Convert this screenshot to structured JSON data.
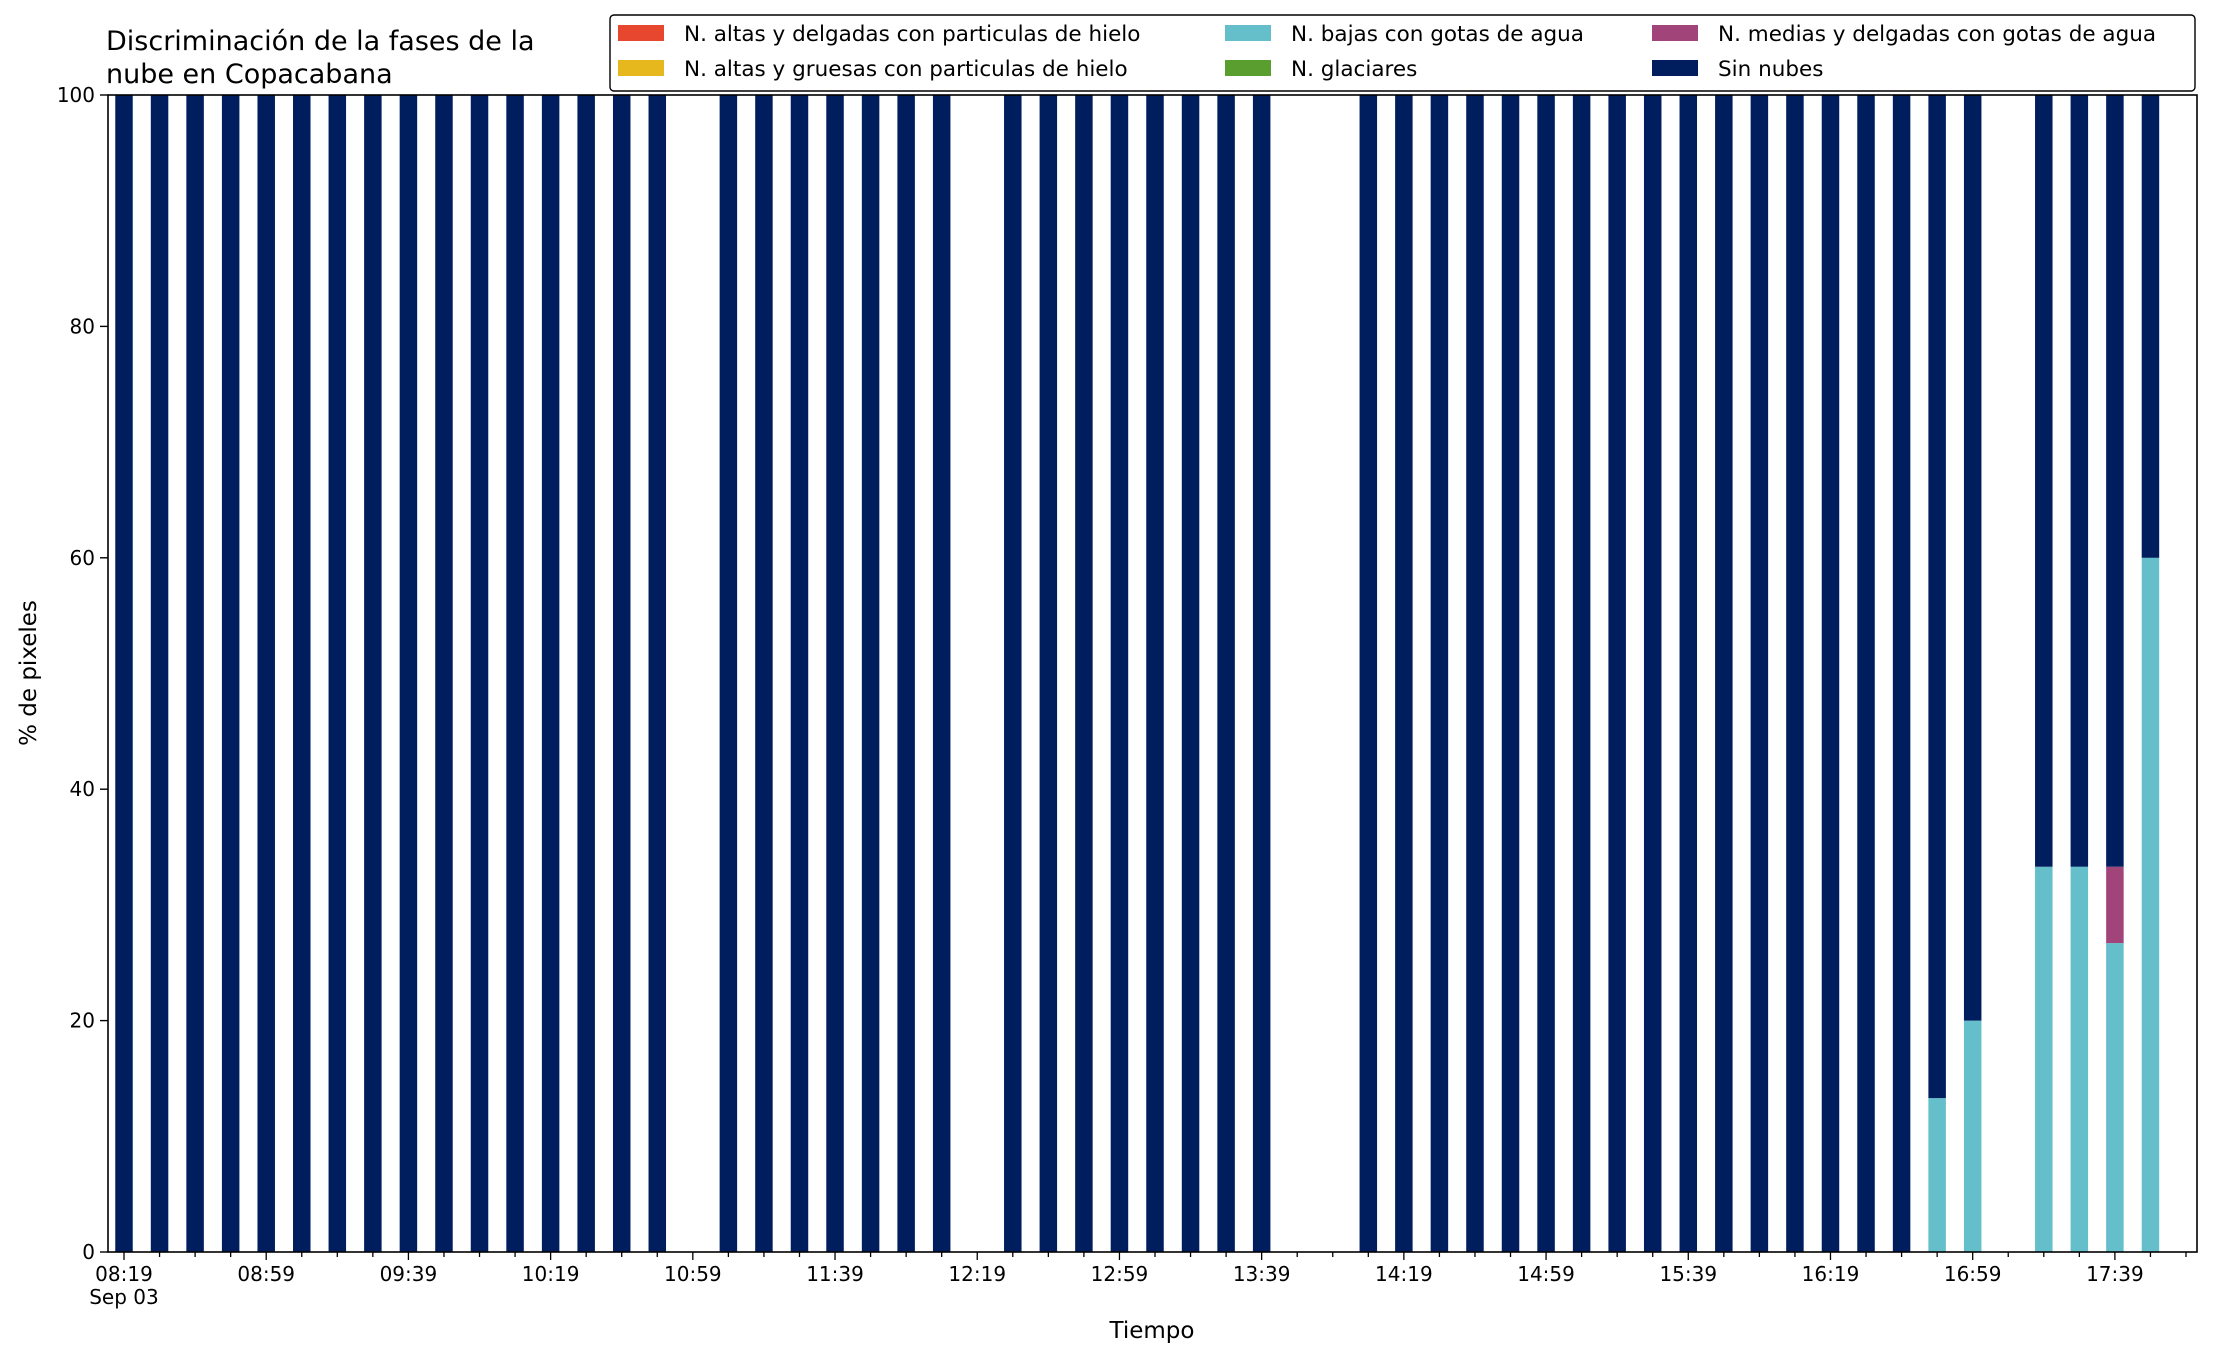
{
  "chart_data": {
    "type": "bar",
    "stacked": true,
    "title_lines": [
      "Discriminación de la fases de la",
      "nube en Copacabana"
    ],
    "xlabel": "Tiempo",
    "ylabel": "% de pixeles",
    "ylim": [
      0,
      100
    ],
    "yticks": [
      0,
      20,
      40,
      60,
      80,
      100
    ],
    "x_start": "08:19",
    "x_end": "17:59",
    "x_step_minutes": 10,
    "x_tick_labels": [
      "08:19",
      "08:59",
      "09:39",
      "10:19",
      "10:59",
      "11:39",
      "12:19",
      "12:59",
      "13:39",
      "14:19",
      "14:59",
      "15:39",
      "16:19",
      "16:59",
      "17:39"
    ],
    "x_date_label": "Sep 03",
    "legend_position": "top-right",
    "grid": false,
    "series": [
      {
        "name": "N. altas y delgadas con particulas de hielo",
        "color": "#e8472f"
      },
      {
        "name": "N. altas y gruesas con particulas de hielo",
        "color": "#e6b81e"
      },
      {
        "name": "N. bajas con gotas de agua",
        "color": "#64bfca"
      },
      {
        "name": "N. glaciares",
        "color": "#5a9e2f"
      },
      {
        "name": "N. medias y delgadas con gotas de agua",
        "color": "#a0447a"
      },
      {
        "name": "Sin nubes",
        "color": "#001e5e"
      }
    ],
    "bars": [
      {
        "time": "08:19",
        "values": [
          0,
          0,
          0,
          0,
          0,
          100
        ]
      },
      {
        "time": "08:29",
        "values": [
          0,
          0,
          0,
          0,
          0,
          100
        ]
      },
      {
        "time": "08:39",
        "values": [
          0,
          0,
          0,
          0,
          0,
          100
        ]
      },
      {
        "time": "08:49",
        "values": [
          0,
          0,
          0,
          0,
          0,
          100
        ]
      },
      {
        "time": "08:59",
        "values": [
          0,
          0,
          0,
          0,
          0,
          100
        ]
      },
      {
        "time": "09:09",
        "values": [
          0,
          0,
          0,
          0,
          0,
          100
        ]
      },
      {
        "time": "09:19",
        "values": [
          0,
          0,
          0,
          0,
          0,
          100
        ]
      },
      {
        "time": "09:29",
        "values": [
          0,
          0,
          0,
          0,
          0,
          100
        ]
      },
      {
        "time": "09:39",
        "values": [
          0,
          0,
          0,
          0,
          0,
          100
        ]
      },
      {
        "time": "09:49",
        "values": [
          0,
          0,
          0,
          0,
          0,
          100
        ]
      },
      {
        "time": "09:59",
        "values": [
          0,
          0,
          0,
          0,
          0,
          100
        ]
      },
      {
        "time": "10:09",
        "values": [
          0,
          0,
          0,
          0,
          0,
          100
        ]
      },
      {
        "time": "10:19",
        "values": [
          0,
          0,
          0,
          0,
          0,
          100
        ]
      },
      {
        "time": "10:29",
        "values": [
          0,
          0,
          0,
          0,
          0,
          100
        ]
      },
      {
        "time": "10:39",
        "values": [
          0,
          0,
          0,
          0,
          0,
          100
        ]
      },
      {
        "time": "10:49",
        "values": [
          0,
          0,
          0,
          0,
          0,
          100
        ]
      },
      {
        "time": "11:09",
        "values": [
          0,
          0,
          0,
          0,
          0,
          100
        ]
      },
      {
        "time": "11:19",
        "values": [
          0,
          0,
          0,
          0,
          0,
          100
        ]
      },
      {
        "time": "11:29",
        "values": [
          0,
          0,
          0,
          0,
          0,
          100
        ]
      },
      {
        "time": "11:39",
        "values": [
          0,
          0,
          0,
          0,
          0,
          100
        ]
      },
      {
        "time": "11:49",
        "values": [
          0,
          0,
          0,
          0,
          0,
          100
        ]
      },
      {
        "time": "11:59",
        "values": [
          0,
          0,
          0,
          0,
          0,
          100
        ]
      },
      {
        "time": "12:09",
        "values": [
          0,
          0,
          0,
          0,
          0,
          100
        ]
      },
      {
        "time": "12:29",
        "values": [
          0,
          0,
          0,
          0,
          0,
          100
        ]
      },
      {
        "time": "12:39",
        "values": [
          0,
          0,
          0,
          0,
          0,
          100
        ]
      },
      {
        "time": "12:49",
        "values": [
          0,
          0,
          0,
          0,
          0,
          100
        ]
      },
      {
        "time": "12:59",
        "values": [
          0,
          0,
          0,
          0,
          0,
          100
        ]
      },
      {
        "time": "13:09",
        "values": [
          0,
          0,
          0,
          0,
          0,
          100
        ]
      },
      {
        "time": "13:19",
        "values": [
          0,
          0,
          0,
          0,
          0,
          100
        ]
      },
      {
        "time": "13:29",
        "values": [
          0,
          0,
          0,
          0,
          0,
          100
        ]
      },
      {
        "time": "13:39",
        "values": [
          0,
          0,
          0,
          0,
          0,
          100
        ]
      },
      {
        "time": "14:09",
        "values": [
          0,
          0,
          0,
          0,
          0,
          100
        ]
      },
      {
        "time": "14:19",
        "values": [
          0,
          0,
          0,
          0,
          0,
          100
        ]
      },
      {
        "time": "14:29",
        "values": [
          0,
          0,
          0,
          0,
          0,
          100
        ]
      },
      {
        "time": "14:39",
        "values": [
          0,
          0,
          0,
          0,
          0,
          100
        ]
      },
      {
        "time": "14:49",
        "values": [
          0,
          0,
          0,
          0,
          0,
          100
        ]
      },
      {
        "time": "14:59",
        "values": [
          0,
          0,
          0,
          0,
          0,
          100
        ]
      },
      {
        "time": "15:09",
        "values": [
          0,
          0,
          0,
          0,
          0,
          100
        ]
      },
      {
        "time": "15:19",
        "values": [
          0,
          0,
          0,
          0,
          0,
          100
        ]
      },
      {
        "time": "15:29",
        "values": [
          0,
          0,
          0,
          0,
          0,
          100
        ]
      },
      {
        "time": "15:39",
        "values": [
          0,
          0,
          0,
          0,
          0,
          100
        ]
      },
      {
        "time": "15:49",
        "values": [
          0,
          0,
          0,
          0,
          0,
          100
        ]
      },
      {
        "time": "15:59",
        "values": [
          0,
          0,
          0,
          0,
          0,
          100
        ]
      },
      {
        "time": "16:09",
        "values": [
          0,
          0,
          0,
          0,
          0,
          100
        ]
      },
      {
        "time": "16:19",
        "values": [
          0,
          0,
          0,
          0,
          0,
          100
        ]
      },
      {
        "time": "16:29",
        "values": [
          0,
          0,
          0,
          0,
          0,
          100
        ]
      },
      {
        "time": "16:39",
        "values": [
          0,
          0,
          0,
          0,
          0,
          100
        ]
      },
      {
        "time": "16:49",
        "values": [
          0,
          0,
          13.3,
          0,
          0,
          86.7
        ]
      },
      {
        "time": "16:59",
        "values": [
          0,
          0,
          20,
          0,
          0,
          80
        ]
      },
      {
        "time": "17:19",
        "values": [
          0,
          0,
          33.3,
          0,
          0,
          66.7
        ]
      },
      {
        "time": "17:29",
        "values": [
          0,
          0,
          33.3,
          0,
          0,
          66.7
        ]
      },
      {
        "time": "17:39",
        "values": [
          0,
          0,
          26.7,
          0,
          6.6,
          66.7
        ]
      },
      {
        "time": "17:49",
        "values": [
          0,
          0,
          60,
          0,
          0,
          40
        ]
      }
    ]
  }
}
